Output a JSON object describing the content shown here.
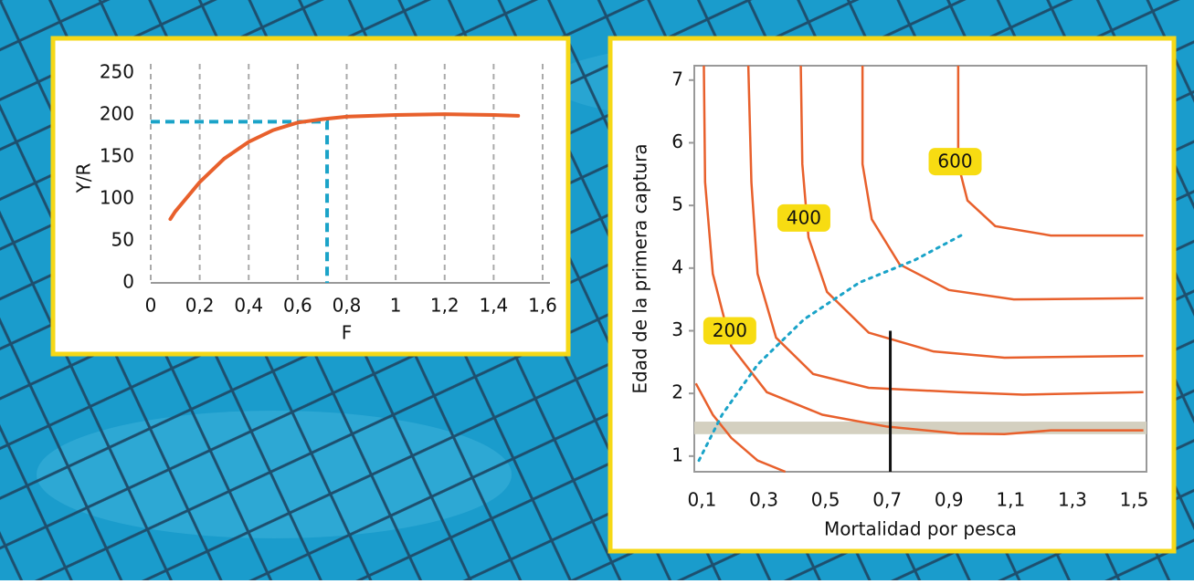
{
  "chart_data": [
    {
      "type": "line",
      "xlabel": "F",
      "ylabel": "Y/R",
      "xlim": [
        0,
        1.6
      ],
      "xticks": [
        0,
        {
          "value": 0.2,
          "label": "0,2"
        },
        {
          "value": 0.4,
          "label": "0,4"
        },
        {
          "value": 0.6,
          "label": "0,6"
        },
        {
          "value": 0.8,
          "label": "0,8"
        },
        1,
        {
          "value": 1.2,
          "label": "1,2"
        },
        {
          "value": 1.4,
          "label": "1,4"
        },
        {
          "value": 1.6,
          "label": "1,6"
        }
      ],
      "ylim": [
        0,
        250
      ],
      "yticks": [
        0,
        50,
        100,
        150,
        200,
        250
      ],
      "grid": true,
      "x": [
        0.08,
        0.1,
        0.2,
        0.3,
        0.4,
        0.5,
        0.6,
        0.7,
        0.8,
        1.0,
        1.2,
        1.4,
        1.5
      ],
      "series": [
        {
          "color": "#e8602c",
          "values": [
            76,
            85,
            120,
            148,
            168,
            182,
            191,
            195,
            198,
            200,
            201,
            200,
            199
          ]
        }
      ],
      "reference": {
        "x": 0.72,
        "y": 192,
        "color": "#1aa3c8"
      }
    },
    {
      "type": "contour",
      "xlabel": "Mortalidad por pesca",
      "ylabel": "Edad de la primera captura",
      "xlim": [
        0.075,
        1.54
      ],
      "xticks": [
        {
          "value": 0.1,
          "label": "0,1"
        },
        {
          "value": 0.3,
          "label": "0,3"
        },
        {
          "value": 0.5,
          "label": "0,5"
        },
        {
          "value": 0.7,
          "label": "0,7"
        },
        {
          "value": 0.9,
          "label": "0,9"
        },
        {
          "value": 1.1,
          "label": "1,1"
        },
        {
          "value": 1.3,
          "label": "1,3"
        },
        {
          "value": 1.5,
          "label": "1,5"
        }
      ],
      "ylim": [
        0.75,
        7.23
      ],
      "yticks": [
        1,
        2,
        3,
        4,
        5,
        6,
        7
      ],
      "color": "#e8602c",
      "contours": [
        {
          "x": [
            0.08,
            0.135,
            0.195,
            0.28,
            0.37
          ],
          "y": [
            2.16,
            1.66,
            1.29,
            0.93,
            0.75
          ]
        },
        {
          "x": [
            0.106,
            0.11,
            0.135,
            0.195,
            0.31,
            0.49,
            0.7,
            0.93,
            1.08,
            1.23,
            1.53
          ],
          "y": [
            7.23,
            5.37,
            3.91,
            2.75,
            2.02,
            1.66,
            1.47,
            1.36,
            1.35,
            1.41,
            1.41
          ]
        },
        {
          "x": [
            0.25,
            0.26,
            0.28,
            0.34,
            0.46,
            0.64,
            0.93,
            1.14,
            1.53
          ],
          "y": [
            7.23,
            5.37,
            3.91,
            2.89,
            2.31,
            2.09,
            2.02,
            1.98,
            2.02
          ]
        },
        {
          "x": [
            0.42,
            0.425,
            0.445,
            0.505,
            0.64,
            0.85,
            1.08,
            1.53
          ],
          "y": [
            7.23,
            5.66,
            4.49,
            3.62,
            2.97,
            2.67,
            2.57,
            2.6
          ]
        },
        {
          "x": [
            0.62,
            0.62,
            0.65,
            0.74,
            0.9,
            1.11,
            1.53
          ],
          "y": [
            7.23,
            5.66,
            4.78,
            4.06,
            3.65,
            3.5,
            3.52
          ]
        },
        {
          "x": [
            0.93,
            0.93,
            0.96,
            1.05,
            1.23,
            1.53
          ],
          "y": [
            7.23,
            5.66,
            5.08,
            4.67,
            4.52,
            4.52
          ]
        }
      ],
      "labels": [
        {
          "value": 200,
          "x": 0.19,
          "y": 3.0
        },
        {
          "value": 400,
          "x": 0.43,
          "y": 4.8
        },
        {
          "value": 600,
          "x": 0.92,
          "y": 5.7
        }
      ],
      "curve": {
        "color": "#1aa3c8",
        "x": [
          0.09,
          0.165,
          0.28,
          0.43,
          0.61,
          0.79,
          0.95
        ],
        "y": [
          0.93,
          1.66,
          2.46,
          3.18,
          3.77,
          4.13,
          4.55
        ]
      },
      "marker_line": {
        "x": 0.71,
        "y": 3.0
      },
      "band": {
        "y": [
          1.35,
          1.55
        ],
        "color": "#d4d0c0"
      }
    }
  ]
}
